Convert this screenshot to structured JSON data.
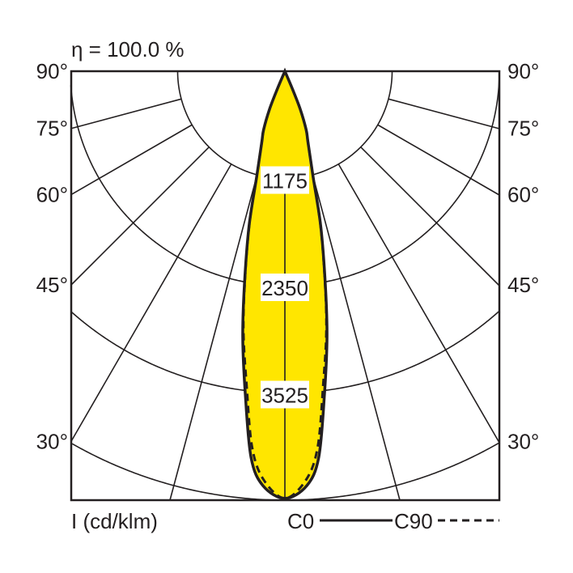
{
  "chart_data": {
    "type": "polar",
    "title": "η = 100.0 %",
    "unit_label": "I (cd/klm)",
    "angle_ticks": [
      "90°",
      "75°",
      "60°",
      "45°",
      "30°"
    ],
    "angle_tick_values": [
      90,
      75,
      60,
      45,
      30
    ],
    "radial_ticks": [
      1175,
      2350,
      3525
    ],
    "radial_max": 4700,
    "grid": true,
    "fill_color": "#ffe600",
    "line_color": "#231f20",
    "series": [
      {
        "name": "C0",
        "style": "solid",
        "angles": [
          0,
          3,
          5,
          7,
          9,
          10.7,
          13,
          15,
          18,
          20,
          22,
          23,
          24
        ],
        "values": [
          4680,
          4550,
          4250,
          3560,
          2950,
          2390,
          1750,
          1190,
          820,
          680,
          450,
          220,
          0
        ]
      },
      {
        "name": "C90",
        "style": "dashed",
        "angles": [
          0,
          3,
          5,
          7,
          9,
          10.7,
          13,
          15,
          18,
          20,
          22,
          23,
          24
        ],
        "values": [
          4680,
          4480,
          4130,
          3450,
          2900,
          2370,
          1740,
          1190,
          820,
          680,
          450,
          220,
          0
        ]
      }
    ]
  }
}
